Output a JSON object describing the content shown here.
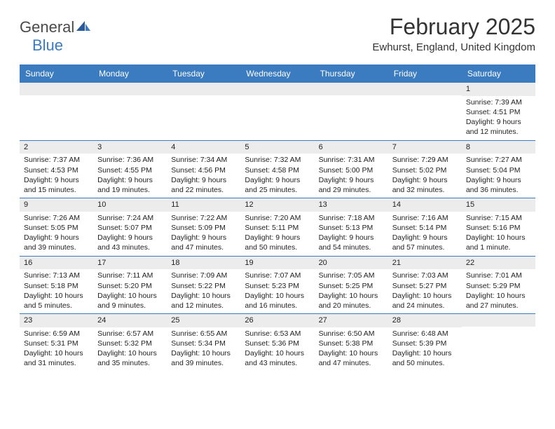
{
  "logo": {
    "word1": "General",
    "word2": "Blue"
  },
  "title": "February 2025",
  "location": "Ewhurst, England, United Kingdom",
  "colors": {
    "header_bg": "#3b7bbf",
    "header_text": "#ffffff",
    "daynum_bg": "#ececec",
    "body_text": "#222222",
    "divider": "#3b7bbf",
    "page_bg": "#ffffff",
    "logo_gray": "#4a4a4a",
    "logo_blue": "#3b7bbf"
  },
  "typography": {
    "title_fontsize": 32,
    "location_fontsize": 15,
    "dayheader_fontsize": 12,
    "daynum_fontsize": 11,
    "body_fontsize": 10.5,
    "font_family": "Arial"
  },
  "day_names": [
    "Sunday",
    "Monday",
    "Tuesday",
    "Wednesday",
    "Thursday",
    "Friday",
    "Saturday"
  ],
  "weeks": [
    [
      {
        "n": "",
        "sr": "",
        "ss": "",
        "dl": ""
      },
      {
        "n": "",
        "sr": "",
        "ss": "",
        "dl": ""
      },
      {
        "n": "",
        "sr": "",
        "ss": "",
        "dl": ""
      },
      {
        "n": "",
        "sr": "",
        "ss": "",
        "dl": ""
      },
      {
        "n": "",
        "sr": "",
        "ss": "",
        "dl": ""
      },
      {
        "n": "",
        "sr": "",
        "ss": "",
        "dl": ""
      },
      {
        "n": "1",
        "sr": "Sunrise: 7:39 AM",
        "ss": "Sunset: 4:51 PM",
        "dl": "Daylight: 9 hours and 12 minutes."
      }
    ],
    [
      {
        "n": "2",
        "sr": "Sunrise: 7:37 AM",
        "ss": "Sunset: 4:53 PM",
        "dl": "Daylight: 9 hours and 15 minutes."
      },
      {
        "n": "3",
        "sr": "Sunrise: 7:36 AM",
        "ss": "Sunset: 4:55 PM",
        "dl": "Daylight: 9 hours and 19 minutes."
      },
      {
        "n": "4",
        "sr": "Sunrise: 7:34 AM",
        "ss": "Sunset: 4:56 PM",
        "dl": "Daylight: 9 hours and 22 minutes."
      },
      {
        "n": "5",
        "sr": "Sunrise: 7:32 AM",
        "ss": "Sunset: 4:58 PM",
        "dl": "Daylight: 9 hours and 25 minutes."
      },
      {
        "n": "6",
        "sr": "Sunrise: 7:31 AM",
        "ss": "Sunset: 5:00 PM",
        "dl": "Daylight: 9 hours and 29 minutes."
      },
      {
        "n": "7",
        "sr": "Sunrise: 7:29 AM",
        "ss": "Sunset: 5:02 PM",
        "dl": "Daylight: 9 hours and 32 minutes."
      },
      {
        "n": "8",
        "sr": "Sunrise: 7:27 AM",
        "ss": "Sunset: 5:04 PM",
        "dl": "Daylight: 9 hours and 36 minutes."
      }
    ],
    [
      {
        "n": "9",
        "sr": "Sunrise: 7:26 AM",
        "ss": "Sunset: 5:05 PM",
        "dl": "Daylight: 9 hours and 39 minutes."
      },
      {
        "n": "10",
        "sr": "Sunrise: 7:24 AM",
        "ss": "Sunset: 5:07 PM",
        "dl": "Daylight: 9 hours and 43 minutes."
      },
      {
        "n": "11",
        "sr": "Sunrise: 7:22 AM",
        "ss": "Sunset: 5:09 PM",
        "dl": "Daylight: 9 hours and 47 minutes."
      },
      {
        "n": "12",
        "sr": "Sunrise: 7:20 AM",
        "ss": "Sunset: 5:11 PM",
        "dl": "Daylight: 9 hours and 50 minutes."
      },
      {
        "n": "13",
        "sr": "Sunrise: 7:18 AM",
        "ss": "Sunset: 5:13 PM",
        "dl": "Daylight: 9 hours and 54 minutes."
      },
      {
        "n": "14",
        "sr": "Sunrise: 7:16 AM",
        "ss": "Sunset: 5:14 PM",
        "dl": "Daylight: 9 hours and 57 minutes."
      },
      {
        "n": "15",
        "sr": "Sunrise: 7:15 AM",
        "ss": "Sunset: 5:16 PM",
        "dl": "Daylight: 10 hours and 1 minute."
      }
    ],
    [
      {
        "n": "16",
        "sr": "Sunrise: 7:13 AM",
        "ss": "Sunset: 5:18 PM",
        "dl": "Daylight: 10 hours and 5 minutes."
      },
      {
        "n": "17",
        "sr": "Sunrise: 7:11 AM",
        "ss": "Sunset: 5:20 PM",
        "dl": "Daylight: 10 hours and 9 minutes."
      },
      {
        "n": "18",
        "sr": "Sunrise: 7:09 AM",
        "ss": "Sunset: 5:22 PM",
        "dl": "Daylight: 10 hours and 12 minutes."
      },
      {
        "n": "19",
        "sr": "Sunrise: 7:07 AM",
        "ss": "Sunset: 5:23 PM",
        "dl": "Daylight: 10 hours and 16 minutes."
      },
      {
        "n": "20",
        "sr": "Sunrise: 7:05 AM",
        "ss": "Sunset: 5:25 PM",
        "dl": "Daylight: 10 hours and 20 minutes."
      },
      {
        "n": "21",
        "sr": "Sunrise: 7:03 AM",
        "ss": "Sunset: 5:27 PM",
        "dl": "Daylight: 10 hours and 24 minutes."
      },
      {
        "n": "22",
        "sr": "Sunrise: 7:01 AM",
        "ss": "Sunset: 5:29 PM",
        "dl": "Daylight: 10 hours and 27 minutes."
      }
    ],
    [
      {
        "n": "23",
        "sr": "Sunrise: 6:59 AM",
        "ss": "Sunset: 5:31 PM",
        "dl": "Daylight: 10 hours and 31 minutes."
      },
      {
        "n": "24",
        "sr": "Sunrise: 6:57 AM",
        "ss": "Sunset: 5:32 PM",
        "dl": "Daylight: 10 hours and 35 minutes."
      },
      {
        "n": "25",
        "sr": "Sunrise: 6:55 AM",
        "ss": "Sunset: 5:34 PM",
        "dl": "Daylight: 10 hours and 39 minutes."
      },
      {
        "n": "26",
        "sr": "Sunrise: 6:53 AM",
        "ss": "Sunset: 5:36 PM",
        "dl": "Daylight: 10 hours and 43 minutes."
      },
      {
        "n": "27",
        "sr": "Sunrise: 6:50 AM",
        "ss": "Sunset: 5:38 PM",
        "dl": "Daylight: 10 hours and 47 minutes."
      },
      {
        "n": "28",
        "sr": "Sunrise: 6:48 AM",
        "ss": "Sunset: 5:39 PM",
        "dl": "Daylight: 10 hours and 50 minutes."
      },
      {
        "n": "",
        "sr": "",
        "ss": "",
        "dl": ""
      }
    ]
  ]
}
